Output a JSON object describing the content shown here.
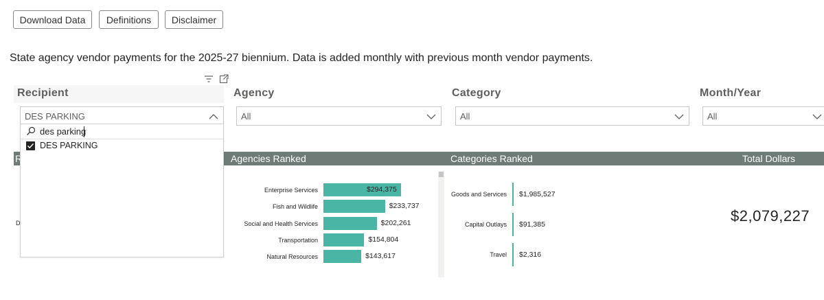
{
  "toolbar": {
    "download_label": "Download Data",
    "definitions_label": "Definitions",
    "disclaimer_label": "Disclaimer"
  },
  "description": "State agency vendor payments for the 2025-27 biennium. Data is added monthly with previous month vendor payments.",
  "slicers": {
    "recipient": {
      "title": "Recipient",
      "selected": "DES PARKING",
      "search_value": "des parking",
      "options": [
        {
          "label": "DES PARKING",
          "checked": true
        }
      ]
    },
    "agency": {
      "title": "Agency",
      "selected": "All"
    },
    "category": {
      "title": "Category",
      "selected": "All"
    },
    "month_year": {
      "title": "Month/Year",
      "selected": "All"
    }
  },
  "section_titles": {
    "recipients_partial": "R",
    "agencies": "Agencies Ranked",
    "categories": "Categories Ranked",
    "total": "Total Dollars"
  },
  "recipient_row_partial": "D",
  "agencies_chart": {
    "type": "bar",
    "categories": [
      "Enterprise Services",
      "Fish and Wildlife",
      "Social and Health Services",
      "Transportation",
      "Natural Resources"
    ],
    "values": [
      294375,
      233737,
      202261,
      154804,
      143617
    ],
    "value_labels": [
      "$294,375",
      "$233,737",
      "$202,261",
      "$154,804",
      "$143,617"
    ],
    "xlim": [
      0,
      294375
    ],
    "title": "Agencies Ranked"
  },
  "categories_chart": {
    "type": "bar",
    "categories": [
      "Goods and Services",
      "Capital Outlays",
      "Travel"
    ],
    "values": [
      1985527,
      91385,
      2316
    ],
    "value_labels": [
      "$1,985,527",
      "$91,385",
      "$2,316"
    ],
    "title": "Categories Ranked"
  },
  "total_dollars": "$2,079,227",
  "colors": {
    "accent": "#4ab5a5",
    "section_bar": "#6e7b76",
    "checkbox": "#252423"
  },
  "icons": {
    "filter": "filter-icon",
    "focus": "focus-mode-icon",
    "search": "search-icon",
    "chevron": "chevron-down-icon"
  }
}
